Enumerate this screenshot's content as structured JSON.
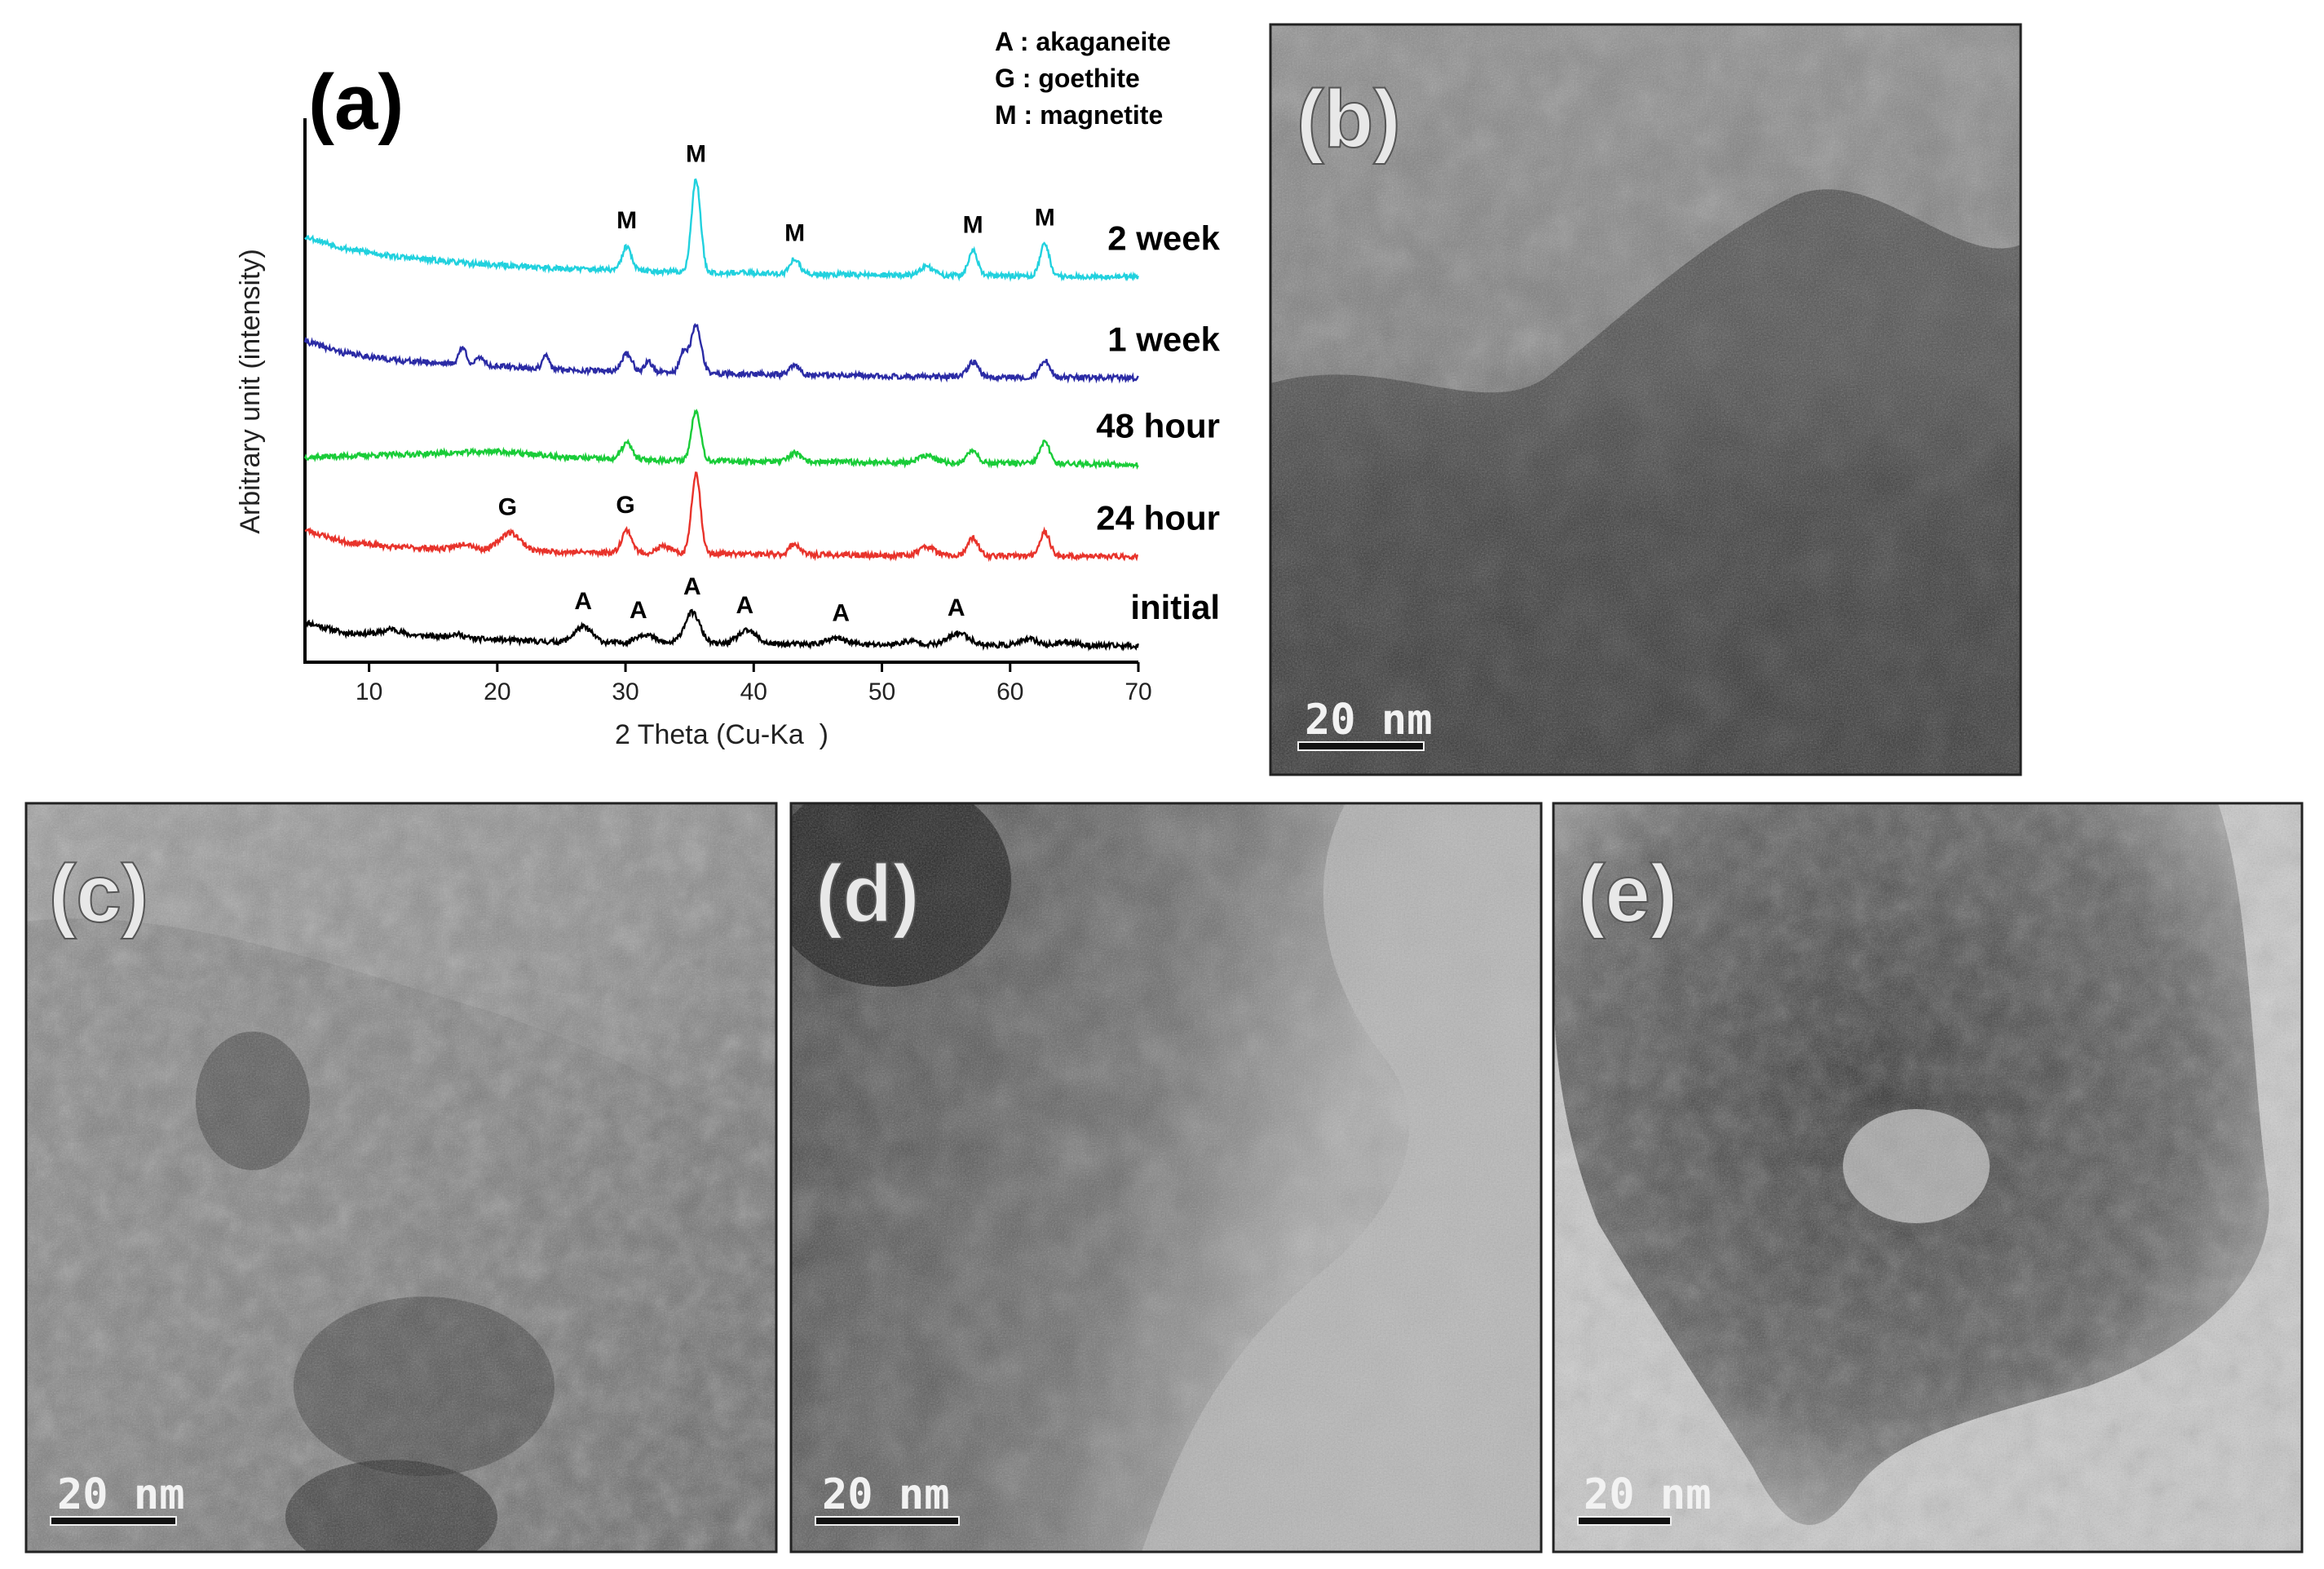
{
  "chart_data": {
    "type": "line",
    "panel_label": "(a)",
    "xlabel": "2 Theta (Cu-Ka  )",
    "ylabel": "Arbitrary unit (intensity)",
    "xlim": [
      5,
      70
    ],
    "xticks": [
      10,
      20,
      30,
      40,
      50,
      60,
      70
    ],
    "grid": false,
    "legend": [
      "A : akaganeite",
      "G : goethite",
      "M : magnetite"
    ],
    "legend_position": "top-right",
    "series": [
      {
        "name": "initial",
        "color": "#000000",
        "baseline": 0.0,
        "noise_seed": 11,
        "background": [
          [
            5,
            0.4
          ],
          [
            8,
            0.22
          ],
          [
            12,
            0.2
          ],
          [
            18,
            0.12
          ],
          [
            25,
            0.06
          ],
          [
            35,
            0.04
          ],
          [
            50,
            0.02
          ],
          [
            70,
            0.0
          ]
        ],
        "peaks": [
          [
            11.8,
            0.08,
            0.6
          ],
          [
            16.8,
            0.06,
            0.6
          ],
          [
            26.7,
            0.26,
            0.7
          ],
          [
            31.5,
            0.15,
            0.7
          ],
          [
            35.2,
            0.52,
            0.6
          ],
          [
            39.5,
            0.22,
            0.7
          ],
          [
            46.5,
            0.1,
            0.8
          ],
          [
            52.3,
            0.06,
            0.7
          ],
          [
            56.0,
            0.2,
            0.8
          ],
          [
            61.5,
            0.1,
            0.7
          ],
          [
            64.5,
            0.06,
            0.7
          ]
        ],
        "annotations": [
          {
            "x": 26.7,
            "label": "A"
          },
          {
            "x": 31.0,
            "label": "A"
          },
          {
            "x": 35.2,
            "label": "A"
          },
          {
            "x": 39.3,
            "label": "A"
          },
          {
            "x": 46.8,
            "label": "A"
          },
          {
            "x": 55.8,
            "label": "A"
          }
        ]
      },
      {
        "name": "24 hour",
        "color": "#e8332b",
        "baseline": 1.5,
        "noise_seed": 23,
        "background": [
          [
            5,
            0.45
          ],
          [
            8,
            0.25
          ],
          [
            12,
            0.16
          ],
          [
            18,
            0.12
          ],
          [
            25,
            0.08
          ],
          [
            35,
            0.05
          ],
          [
            50,
            0.02
          ],
          [
            70,
            0.0
          ]
        ],
        "peaks": [
          [
            17.5,
            0.1,
            0.6
          ],
          [
            21.0,
            0.3,
            0.8
          ],
          [
            30.1,
            0.38,
            0.4
          ],
          [
            33.0,
            0.12,
            0.5
          ],
          [
            35.5,
            1.35,
            0.35
          ],
          [
            43.2,
            0.18,
            0.4
          ],
          [
            53.5,
            0.15,
            0.6
          ],
          [
            57.1,
            0.3,
            0.4
          ],
          [
            62.7,
            0.4,
            0.4
          ]
        ],
        "annotations": [
          {
            "x": 20.8,
            "label": "G"
          },
          {
            "x": 30.0,
            "label": "G"
          }
        ]
      },
      {
        "name": "48 hour",
        "color": "#19cc38",
        "baseline": 3.05,
        "noise_seed": 37,
        "background": [
          [
            5,
            0.12
          ],
          [
            10,
            0.15
          ],
          [
            15,
            0.18
          ],
          [
            20,
            0.22
          ],
          [
            25,
            0.12
          ],
          [
            30,
            0.08
          ],
          [
            40,
            0.05
          ],
          [
            70,
            0.0
          ]
        ],
        "peaks": [
          [
            30.1,
            0.28,
            0.4
          ],
          [
            35.5,
            0.85,
            0.35
          ],
          [
            43.2,
            0.15,
            0.4
          ],
          [
            53.5,
            0.12,
            0.6
          ],
          [
            57.1,
            0.22,
            0.4
          ],
          [
            62.7,
            0.35,
            0.4
          ]
        ],
        "annotations": []
      },
      {
        "name": "1 week",
        "color": "#2b2ba5",
        "baseline": 4.5,
        "noise_seed": 41,
        "background": [
          [
            5,
            0.62
          ],
          [
            8,
            0.42
          ],
          [
            12,
            0.3
          ],
          [
            18,
            0.22
          ],
          [
            25,
            0.14
          ],
          [
            35,
            0.08
          ],
          [
            50,
            0.03
          ],
          [
            70,
            0.0
          ]
        ],
        "peaks": [
          [
            17.3,
            0.28,
            0.3
          ],
          [
            18.7,
            0.14,
            0.3
          ],
          [
            23.8,
            0.22,
            0.25
          ],
          [
            30.1,
            0.3,
            0.4
          ],
          [
            31.8,
            0.18,
            0.3
          ],
          [
            34.5,
            0.35,
            0.3
          ],
          [
            35.5,
            0.8,
            0.4
          ],
          [
            43.2,
            0.15,
            0.4
          ],
          [
            57.1,
            0.25,
            0.4
          ],
          [
            62.7,
            0.28,
            0.4
          ]
        ],
        "annotations": []
      },
      {
        "name": "2 week",
        "color": "#21d1de",
        "baseline": 6.2,
        "noise_seed": 53,
        "background": [
          [
            5,
            0.68
          ],
          [
            8,
            0.48
          ],
          [
            12,
            0.34
          ],
          [
            18,
            0.22
          ],
          [
            25,
            0.14
          ],
          [
            35,
            0.08
          ],
          [
            50,
            0.03
          ],
          [
            70,
            0.0
          ]
        ],
        "peaks": [
          [
            30.1,
            0.4,
            0.35
          ],
          [
            35.5,
            1.55,
            0.35
          ],
          [
            43.2,
            0.25,
            0.35
          ],
          [
            53.5,
            0.15,
            0.5
          ],
          [
            57.1,
            0.42,
            0.35
          ],
          [
            62.7,
            0.55,
            0.35
          ]
        ],
        "annotations": [
          {
            "x": 30.1,
            "label": "M"
          },
          {
            "x": 35.5,
            "label": "M"
          },
          {
            "x": 43.2,
            "label": "M"
          },
          {
            "x": 57.1,
            "label": "M"
          },
          {
            "x": 62.7,
            "label": "M"
          }
        ]
      }
    ]
  },
  "tem_panels": [
    {
      "label": "(b)",
      "scale_bar": "20 nm"
    },
    {
      "label": "(c)",
      "scale_bar": "20 nm"
    },
    {
      "label": "(d)",
      "scale_bar": "20 nm"
    },
    {
      "label": "(e)",
      "scale_bar": "20 nm"
    }
  ]
}
